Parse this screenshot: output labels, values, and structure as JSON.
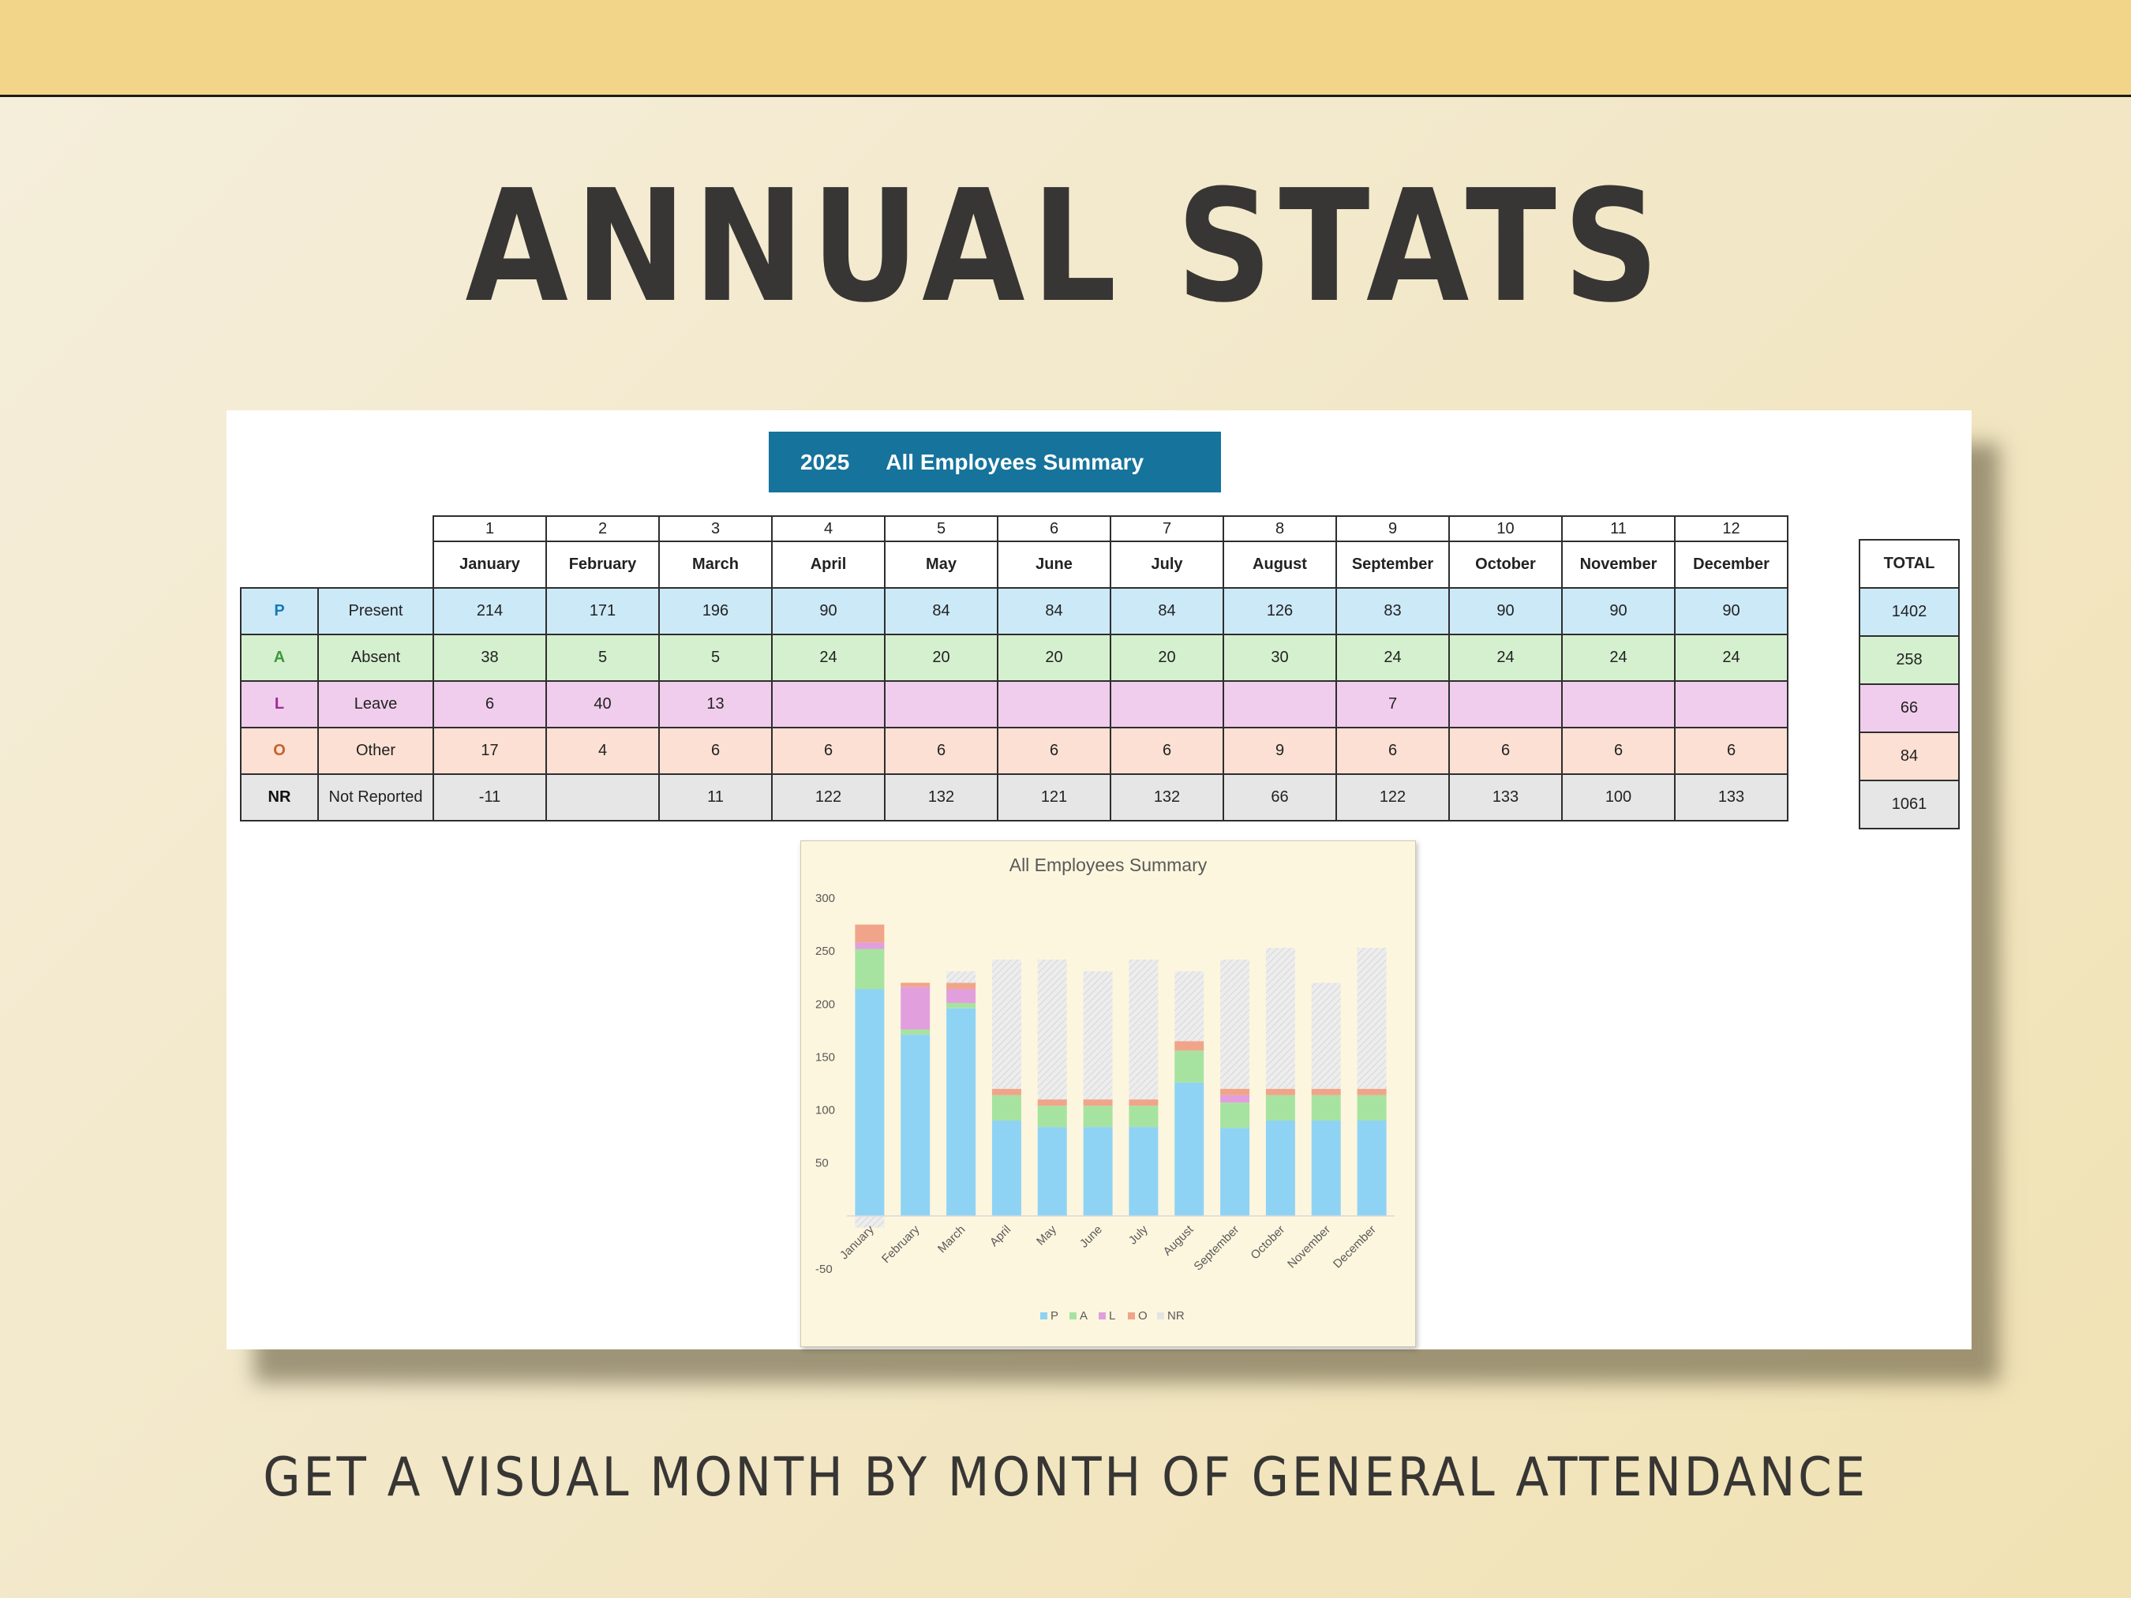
{
  "heading": "ANNUAL STATS",
  "tagline": "GET A VISUAL MONTH BY MONTH OF GENERAL ATTENDANCE",
  "sheet": {
    "banner_year": "2025",
    "banner_title": "All Employees Summary",
    "month_numbers": [
      "1",
      "2",
      "3",
      "4",
      "5",
      "6",
      "7",
      "8",
      "9",
      "10",
      "11",
      "12"
    ],
    "months": [
      "January",
      "February",
      "March",
      "April",
      "May",
      "June",
      "July",
      "August",
      "September",
      "October",
      "November",
      "December"
    ],
    "total_label": "TOTAL",
    "rows": [
      {
        "code": "P",
        "label": "Present",
        "values": [
          "214",
          "171",
          "196",
          "90",
          "84",
          "84",
          "84",
          "126",
          "83",
          "90",
          "90",
          "90"
        ],
        "total": "1402"
      },
      {
        "code": "A",
        "label": "Absent",
        "values": [
          "38",
          "5",
          "5",
          "24",
          "20",
          "20",
          "20",
          "30",
          "24",
          "24",
          "24",
          "24"
        ],
        "total": "258"
      },
      {
        "code": "L",
        "label": "Leave",
        "values": [
          "6",
          "40",
          "13",
          "",
          "",
          "",
          "",
          "",
          "7",
          "",
          "",
          ""
        ],
        "total": "66"
      },
      {
        "code": "O",
        "label": "Other",
        "values": [
          "17",
          "4",
          "6",
          "6",
          "6",
          "6",
          "6",
          "9",
          "6",
          "6",
          "6",
          "6"
        ],
        "total": "84"
      },
      {
        "code": "NR",
        "label": "Not Reported",
        "values": [
          "-11",
          "",
          "11",
          "122",
          "132",
          "121",
          "132",
          "66",
          "122",
          "133",
          "100",
          "133"
        ],
        "total": "1061"
      }
    ]
  },
  "colors": {
    "P": "#8fd3f4",
    "A": "#a7e3a0",
    "L": "#e29fde",
    "O": "#f0a58a",
    "NR": "#e4e4e4"
  },
  "chart_data": {
    "type": "bar",
    "stacked": true,
    "title": "All Employees Summary",
    "categories": [
      "January",
      "February",
      "March",
      "April",
      "May",
      "June",
      "July",
      "August",
      "September",
      "October",
      "November",
      "December"
    ],
    "series": [
      {
        "name": "P",
        "values": [
          214,
          171,
          196,
          90,
          84,
          84,
          84,
          126,
          83,
          90,
          90,
          90
        ]
      },
      {
        "name": "A",
        "values": [
          38,
          5,
          5,
          24,
          20,
          20,
          20,
          30,
          24,
          24,
          24,
          24
        ]
      },
      {
        "name": "L",
        "values": [
          6,
          40,
          13,
          0,
          0,
          0,
          0,
          0,
          7,
          0,
          0,
          0
        ]
      },
      {
        "name": "O",
        "values": [
          17,
          4,
          6,
          6,
          6,
          6,
          6,
          9,
          6,
          6,
          6,
          6
        ]
      },
      {
        "name": "NR",
        "values": [
          -11,
          0,
          11,
          122,
          132,
          121,
          132,
          66,
          122,
          133,
          100,
          133
        ]
      }
    ],
    "yticks": [
      "300",
      "250",
      "200",
      "150",
      "100",
      "50",
      "-50"
    ],
    "ylim": [
      -50,
      300
    ],
    "legend_position": "bottom",
    "grid": false
  }
}
